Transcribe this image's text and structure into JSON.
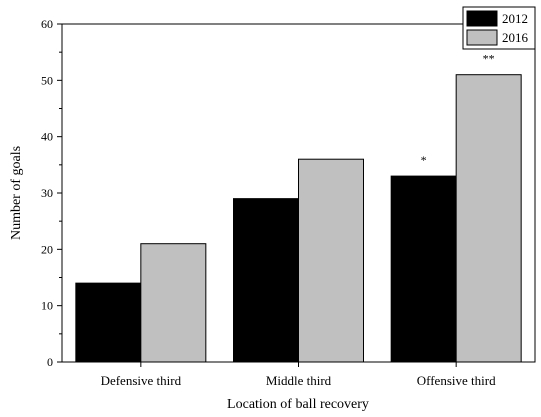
{
  "chart_data": {
    "type": "bar",
    "title": "",
    "xlabel": "Location of ball recovery",
    "ylabel": "Number of goals",
    "categories": [
      "Defensive third",
      "Middle third",
      "Offensive third"
    ],
    "series": [
      {
        "name": "2012",
        "values": [
          14,
          29,
          33
        ],
        "color": "#000000"
      },
      {
        "name": "2016",
        "values": [
          21,
          36,
          51
        ],
        "color": "#c0c0c0"
      }
    ],
    "annotations": [
      {
        "category": "Offensive third",
        "series": "2012",
        "text": "*"
      },
      {
        "category": "Offensive third",
        "series": "2016",
        "text": "**"
      }
    ],
    "ylim": [
      0,
      60
    ],
    "yticks": [
      0,
      10,
      20,
      30,
      40,
      50,
      60
    ],
    "grid": false,
    "legend_position": "top-right"
  }
}
